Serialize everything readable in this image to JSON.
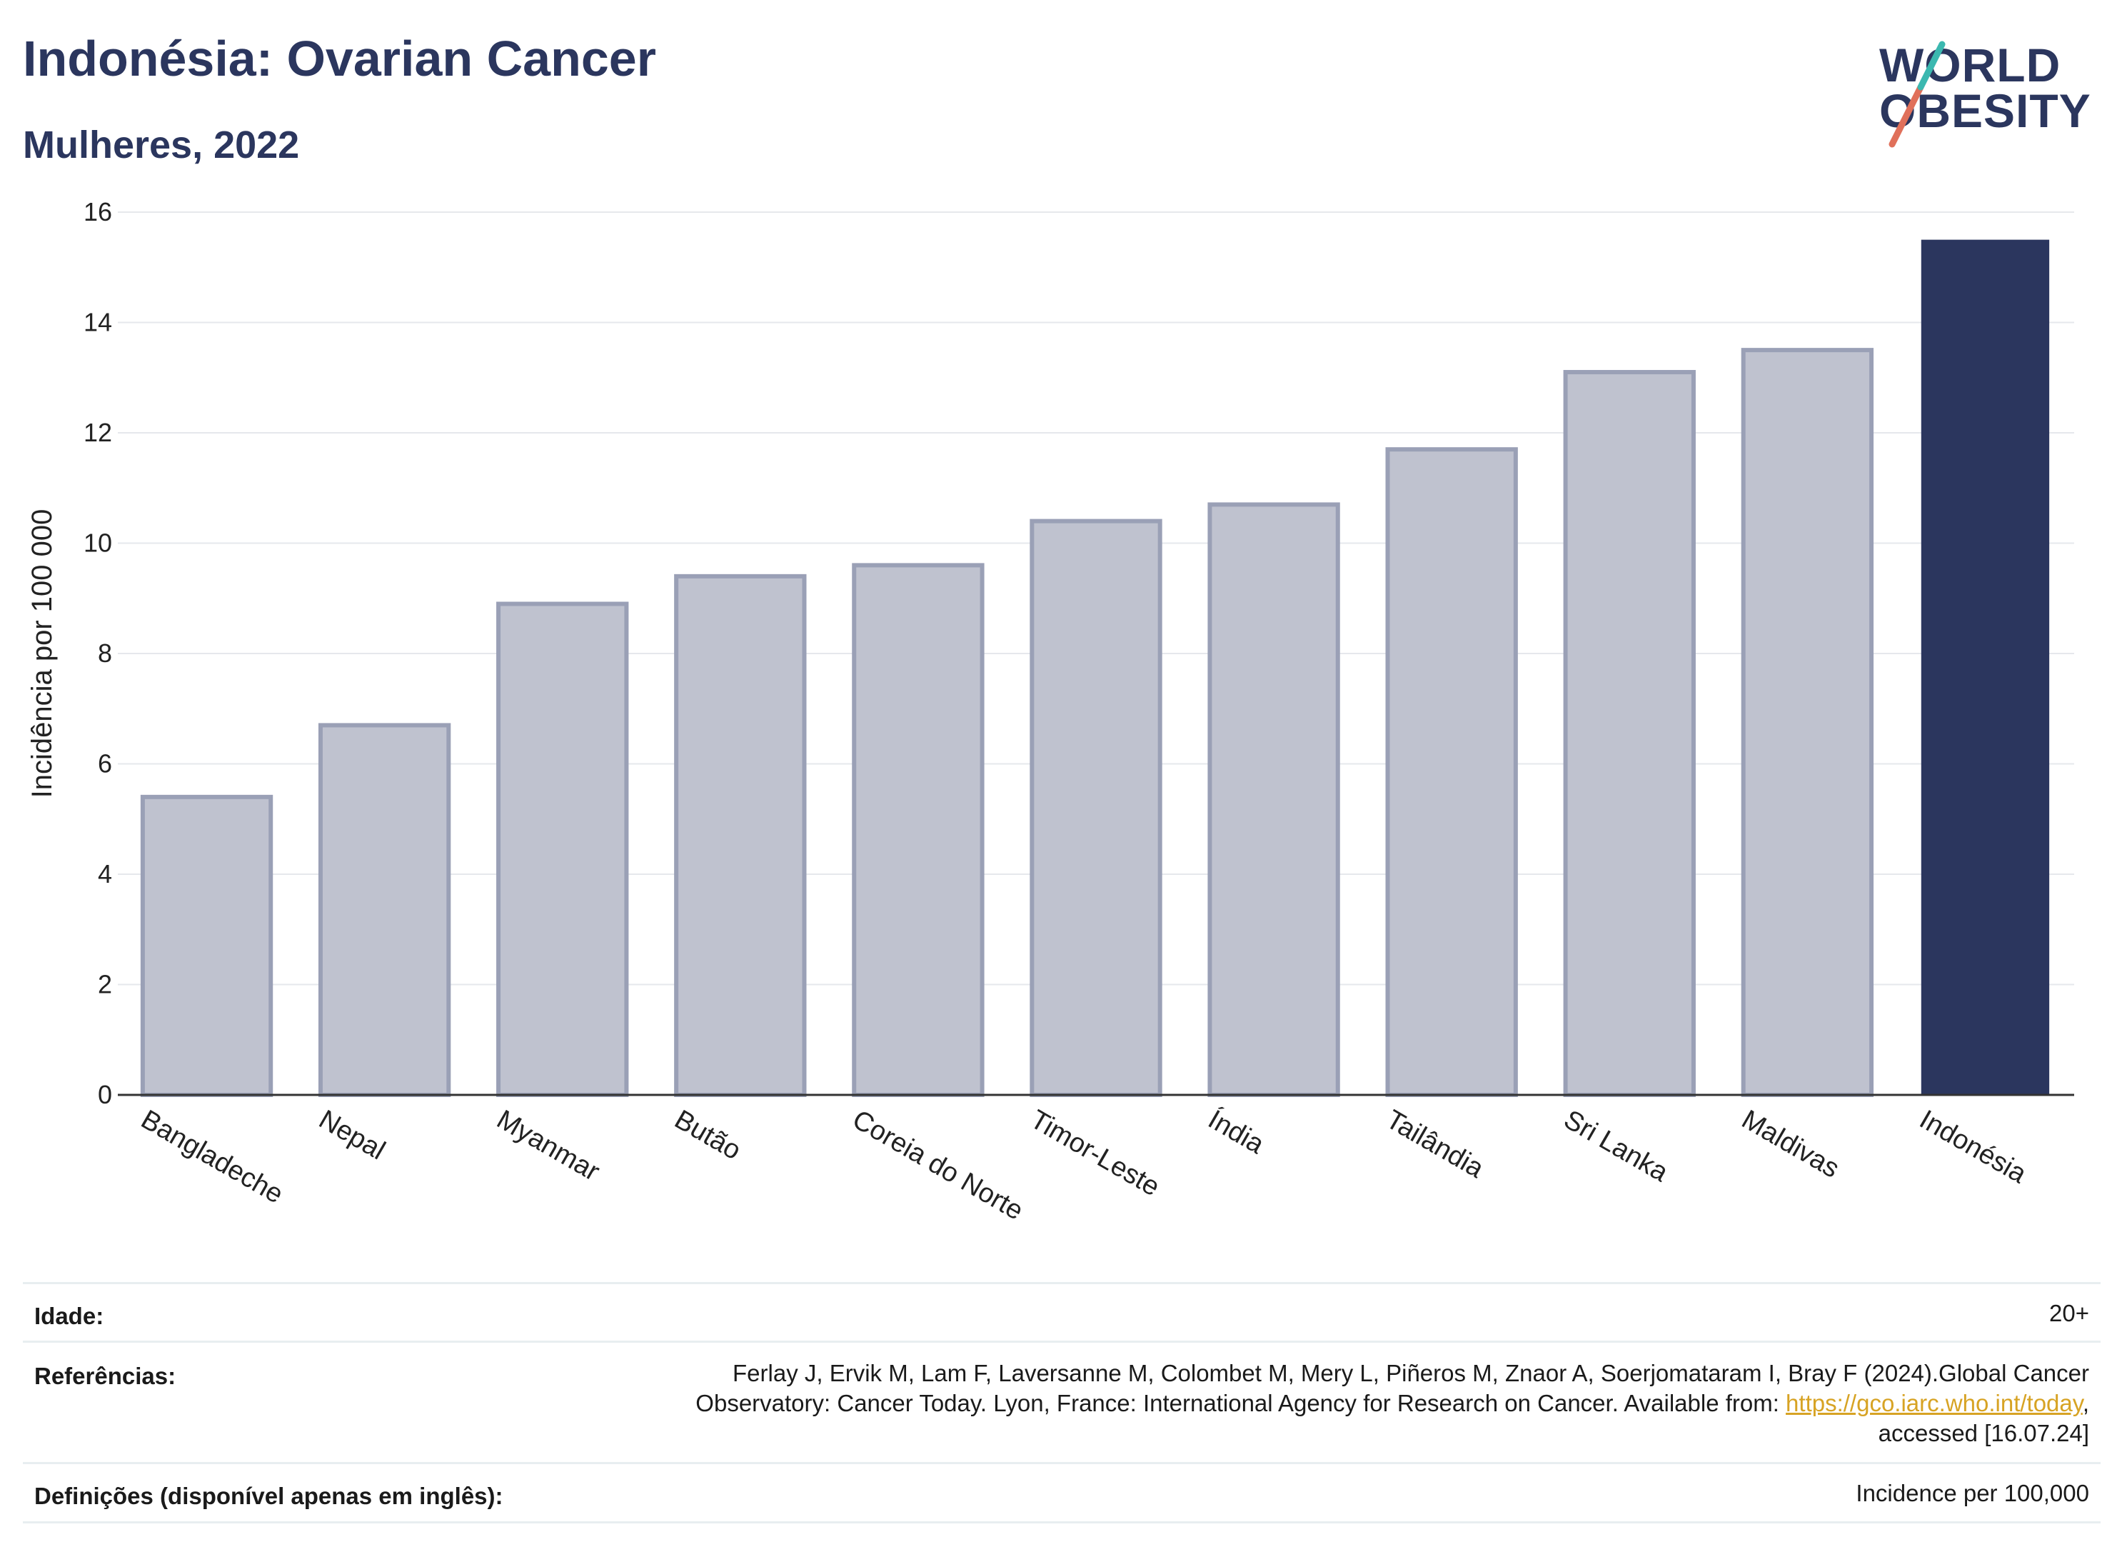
{
  "header": {
    "title": "Indonésia: Ovarian Cancer",
    "subtitle": "Mulheres, 2022"
  },
  "logo": {
    "line1": "WORLD",
    "line2": "OBESITY"
  },
  "chart_data": {
    "type": "bar",
    "ylabel": "Incidência por 100 000",
    "ylim": [
      0,
      16
    ],
    "yticks": [
      0,
      2,
      4,
      6,
      8,
      10,
      12,
      14,
      16
    ],
    "categories": [
      "Bangladeche",
      "Nepal",
      "Myanmar",
      "Butão",
      "Coreia do Norte",
      "Timor-Leste",
      "Índia",
      "Tailândia",
      "Sri Lanka",
      "Maldivas",
      "Indonésia"
    ],
    "values": [
      5.4,
      6.7,
      8.9,
      9.4,
      9.6,
      10.4,
      10.7,
      11.7,
      13.1,
      13.5,
      15.5
    ],
    "highlight": "Indonésia",
    "colors": {
      "normal_fill": "#bfc2cf",
      "normal_stroke": "#9aa0b6",
      "highlight": "#2b365e",
      "grid": "#e6e8ec",
      "axis": "#333333"
    }
  },
  "footer": {
    "age_label": "Idade:",
    "age_value": "20+",
    "ref_label": "Referências:",
    "ref_line1": "Ferlay J, Ervik M, Lam F, Laversanne M, Colombet M, Mery L, Piñeros M, Znaor A, Soerjomataram I, Bray F (2024).Global Cancer",
    "ref_line2_pre": "Observatory: Cancer Today. Lyon, France: International Agency for Research on Cancer. Available from: ",
    "ref_link": "https://gco.iarc.who.int/today",
    "ref_line2_post": ",",
    "ref_line3": "accessed [16.07.24]",
    "def_label": "Definições (disponível apenas em inglês):",
    "def_value": "Incidence per 100,000"
  }
}
